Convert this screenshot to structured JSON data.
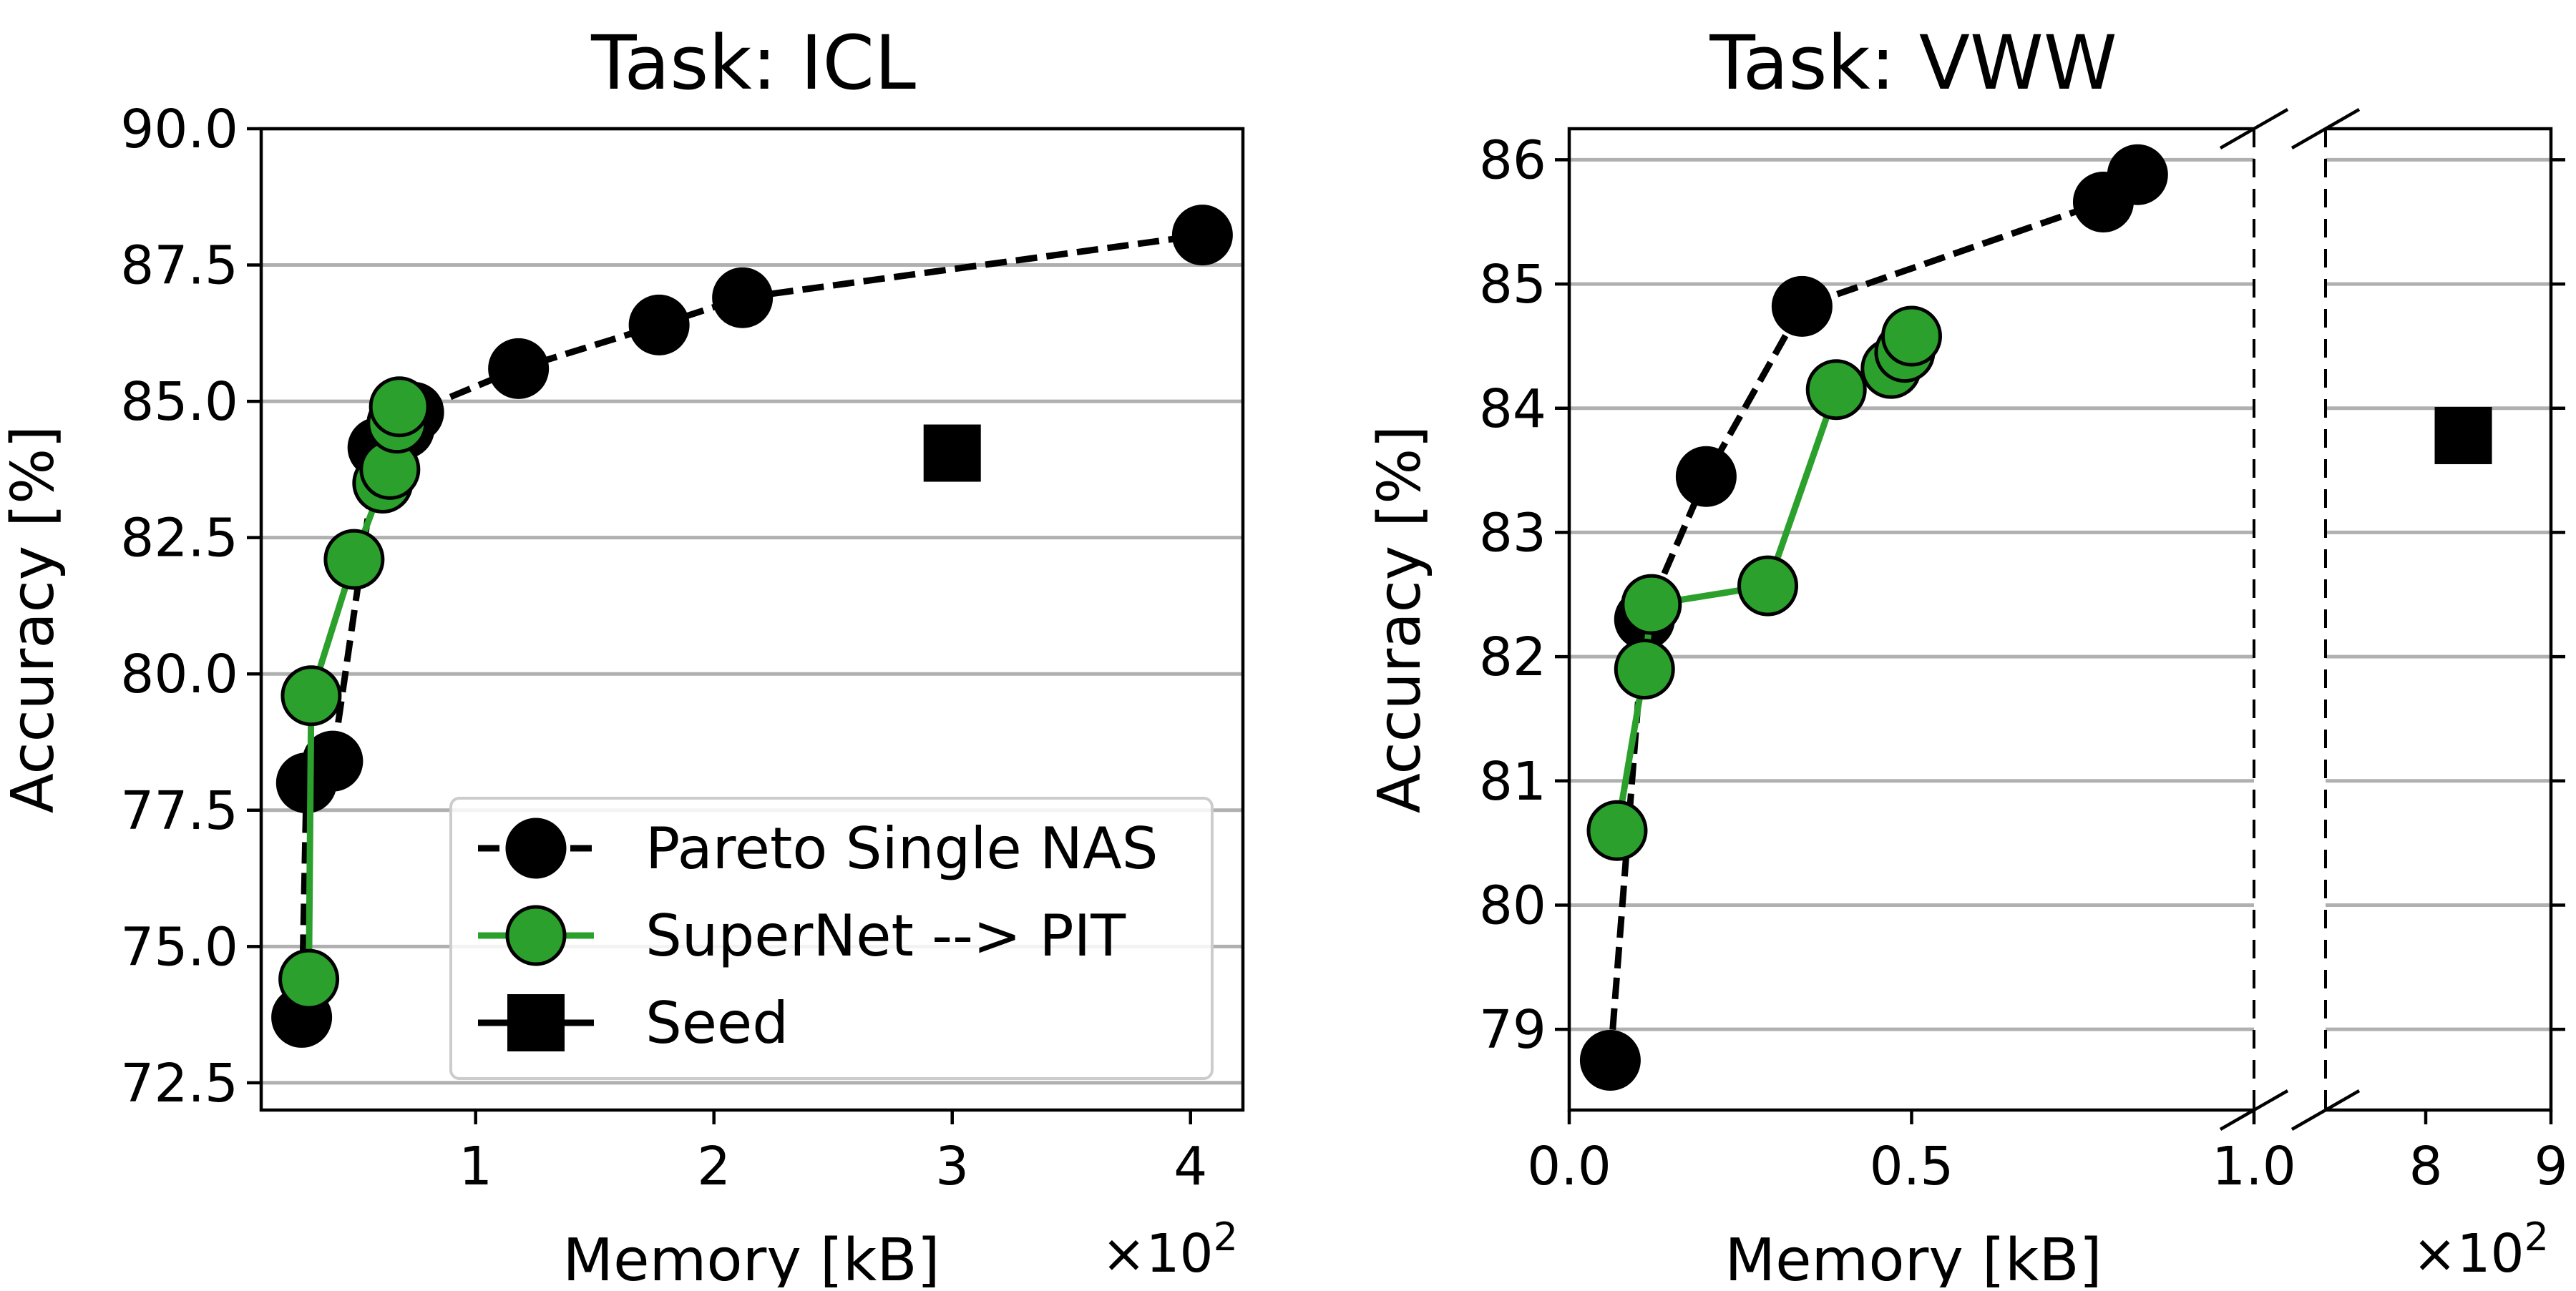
{
  "figure": {
    "legend": {
      "entries": [
        {
          "label": "Pareto Single NAS",
          "series_key": "pareto"
        },
        {
          "label": "SuperNet --> PIT",
          "series_key": "supernet"
        },
        {
          "label": "Seed",
          "series_key": "seed"
        }
      ]
    },
    "colors": {
      "pareto": "#000000",
      "supernet": "#2ca02c",
      "seed": "#000000",
      "grid": "#b0b0b0"
    }
  },
  "chart_data": [
    {
      "type": "scatter",
      "title": "Task: ICL",
      "xlabel": "Memory [kB]",
      "ylabel": "Accuracy [%]",
      "x_multiplier_label": "×10",
      "x_multiplier_exponent": "2",
      "xlim": [
        0.1,
        4.22
      ],
      "ylim": [
        72.0,
        90.0
      ],
      "xticks": [
        1,
        2,
        3,
        4
      ],
      "xtick_labels": [
        "1",
        "2",
        "3",
        "4"
      ],
      "yticks": [
        72.5,
        75.0,
        77.5,
        80.0,
        82.5,
        85.0,
        87.5,
        90.0
      ],
      "ytick_labels": [
        "72.5",
        "75.0",
        "77.5",
        "80.0",
        "82.5",
        "85.0",
        "87.5",
        "90.0"
      ],
      "grid": "y",
      "legend_position": "lower-right",
      "series": [
        {
          "name": "Pareto Single NAS",
          "key": "pareto",
          "style": "dashed-line-circle",
          "points": [
            [
              0.27,
              73.7
            ],
            [
              0.29,
              78.0
            ],
            [
              0.4,
              78.4
            ],
            [
              0.59,
              84.15
            ],
            [
              0.7,
              84.5
            ],
            [
              0.72,
              84.7
            ],
            [
              0.74,
              84.8
            ],
            [
              1.18,
              85.6
            ],
            [
              1.77,
              86.4
            ],
            [
              2.12,
              86.9
            ],
            [
              4.05,
              88.05
            ]
          ]
        },
        {
          "name": "SuperNet --> PIT",
          "key": "supernet",
          "style": "solid-line-circle",
          "points": [
            [
              0.3,
              74.4
            ],
            [
              0.31,
              79.6
            ],
            [
              0.49,
              82.1
            ],
            [
              0.61,
              83.5
            ],
            [
              0.64,
              83.75
            ],
            [
              0.67,
              84.6
            ],
            [
              0.68,
              84.9
            ]
          ]
        },
        {
          "name": "Seed",
          "key": "seed",
          "style": "square",
          "points": [
            [
              3.0,
              84.05
            ]
          ]
        }
      ]
    },
    {
      "type": "scatter",
      "title": "Task: VWW",
      "xlabel": "Memory [kB]",
      "ylabel": "Accuracy [%]",
      "x_multiplier_label": "×10",
      "x_multiplier_exponent": "2",
      "broken_x_axis": true,
      "left_xlim": [
        0.0,
        1.0
      ],
      "right_xlim": [
        7.2,
        9.0
      ],
      "ylim": [
        78.35,
        86.25
      ],
      "left_xticks": [
        0.0,
        0.5,
        1.0
      ],
      "left_xtick_labels": [
        "0.0",
        "0.5",
        "1.0"
      ],
      "right_xticks": [
        8,
        9
      ],
      "right_xtick_labels": [
        "8",
        "9"
      ],
      "yticks": [
        79,
        80,
        81,
        82,
        83,
        84,
        85,
        86
      ],
      "ytick_labels": [
        "79",
        "80",
        "81",
        "82",
        "83",
        "84",
        "85",
        "86"
      ],
      "grid": "y",
      "series": [
        {
          "name": "Pareto Single NAS",
          "key": "pareto",
          "style": "dashed-line-circle",
          "points": [
            [
              0.06,
              78.75
            ],
            [
              0.11,
              82.3
            ],
            [
              0.2,
              83.45
            ],
            [
              0.34,
              84.82
            ],
            [
              0.78,
              85.66
            ],
            [
              0.83,
              85.88
            ]
          ]
        },
        {
          "name": "SuperNet --> PIT",
          "key": "supernet",
          "style": "solid-line-circle",
          "points": [
            [
              0.07,
              80.6
            ],
            [
              0.11,
              81.9
            ],
            [
              0.12,
              82.42
            ],
            [
              0.29,
              82.57
            ],
            [
              0.39,
              84.15
            ],
            [
              0.47,
              84.32
            ],
            [
              0.49,
              84.45
            ],
            [
              0.5,
              84.58
            ]
          ]
        },
        {
          "name": "Seed",
          "key": "seed",
          "style": "square",
          "points": [
            [
              8.3,
              83.78
            ]
          ]
        }
      ]
    }
  ]
}
